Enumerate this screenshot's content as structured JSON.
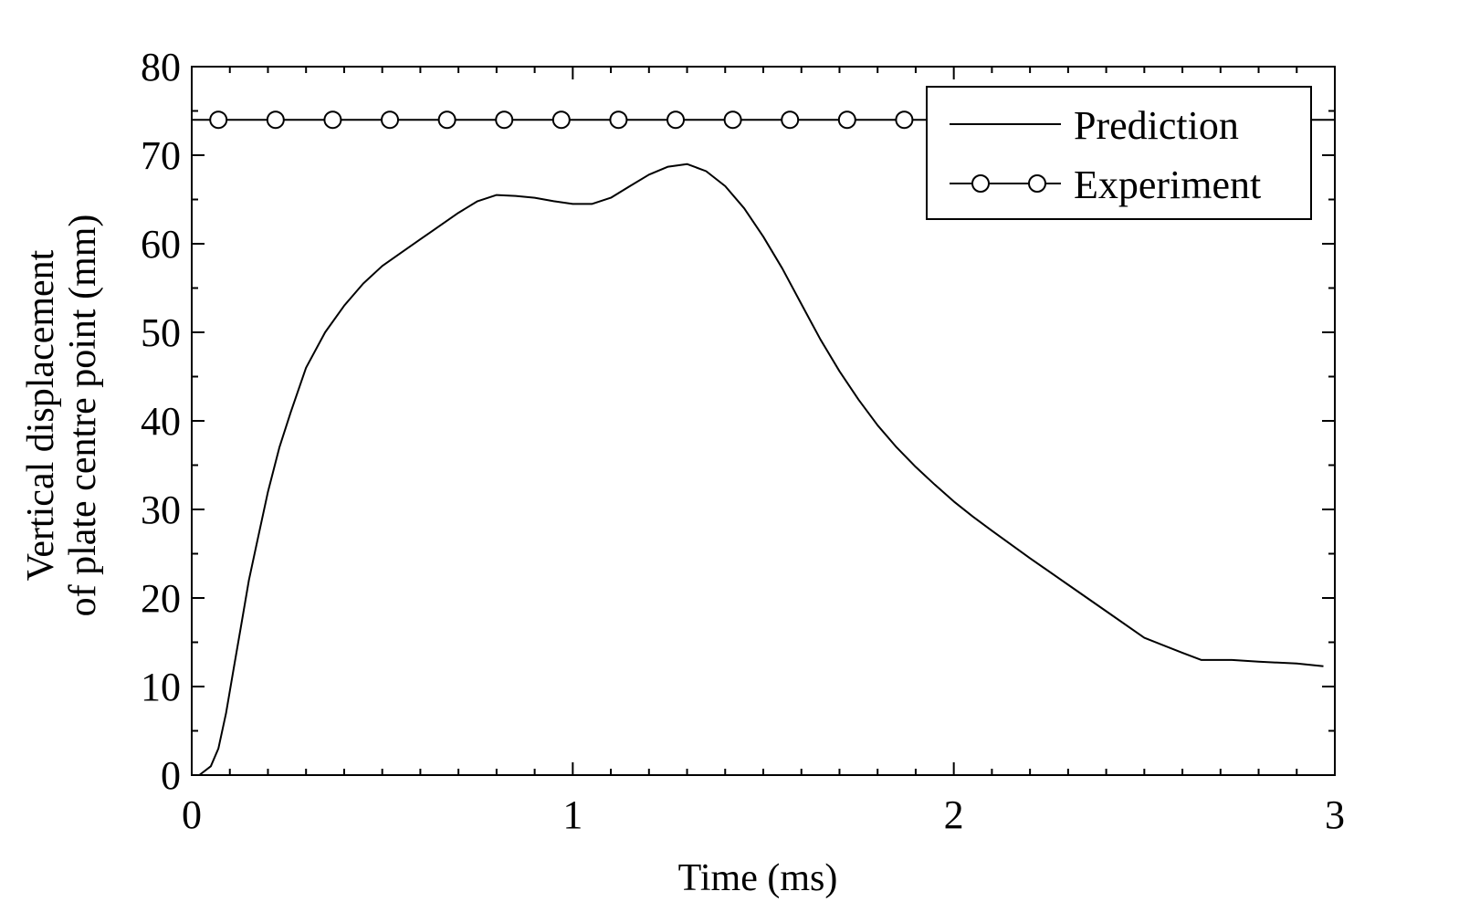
{
  "chart_data": {
    "type": "line",
    "title": "",
    "xlabel": "Time (ms)",
    "ylabel_lines": [
      "Vertical displacement",
      "of plate centre point (mm)"
    ],
    "xlim": [
      0,
      3
    ],
    "ylim": [
      0,
      80
    ],
    "x_ticks": [
      0,
      1,
      2,
      3
    ],
    "x_tick_labels": [
      "0",
      "1",
      "2",
      "3"
    ],
    "y_ticks": [
      0,
      10,
      20,
      30,
      40,
      50,
      60,
      70,
      80
    ],
    "y_tick_labels": [
      "0",
      "10",
      "20",
      "30",
      "40",
      "50",
      "60",
      "70",
      "80"
    ],
    "grid": false,
    "legend_position": "top-right",
    "series": [
      {
        "name": "Prediction",
        "style": "solid-line",
        "color": "#000000",
        "x": [
          0.02,
          0.05,
          0.07,
          0.09,
          0.11,
          0.13,
          0.15,
          0.17,
          0.2,
          0.23,
          0.26,
          0.3,
          0.35,
          0.4,
          0.45,
          0.5,
          0.55,
          0.6,
          0.65,
          0.7,
          0.75,
          0.8,
          0.85,
          0.9,
          0.95,
          1.0,
          1.05,
          1.1,
          1.15,
          1.2,
          1.25,
          1.3,
          1.35,
          1.4,
          1.45,
          1.5,
          1.55,
          1.6,
          1.65,
          1.7,
          1.75,
          1.8,
          1.85,
          1.9,
          1.95,
          2.0,
          2.05,
          2.1,
          2.2,
          2.3,
          2.4,
          2.5,
          2.6,
          2.65,
          2.7,
          2.73,
          2.8,
          2.9,
          2.97
        ],
        "y": [
          0,
          1,
          3,
          7,
          12,
          17,
          22,
          26,
          32,
          37,
          41,
          46,
          50,
          53,
          55.5,
          57.5,
          59,
          60.5,
          62,
          63.5,
          64.8,
          65.5,
          65.4,
          65.2,
          64.8,
          64.5,
          64.5,
          65.2,
          66.5,
          67.8,
          68.7,
          69.0,
          68.2,
          66.5,
          64,
          60.8,
          57.2,
          53.2,
          49.2,
          45.6,
          42.4,
          39.5,
          37,
          34.8,
          32.8,
          30.9,
          29.2,
          27.6,
          24.5,
          21.5,
          18.5,
          15.5,
          13.8,
          13,
          13,
          13,
          12.8,
          12.6,
          12.3
        ]
      },
      {
        "name": "Experiment",
        "style": "line-with-open-circles",
        "color": "#000000",
        "x": [
          0,
          3
        ],
        "y": [
          74,
          74
        ],
        "marker_x": [
          0.07,
          0.22,
          0.37,
          0.52,
          0.67,
          0.82,
          0.97,
          1.12,
          1.27,
          1.42,
          1.57,
          1.72,
          1.87
        ]
      }
    ]
  }
}
